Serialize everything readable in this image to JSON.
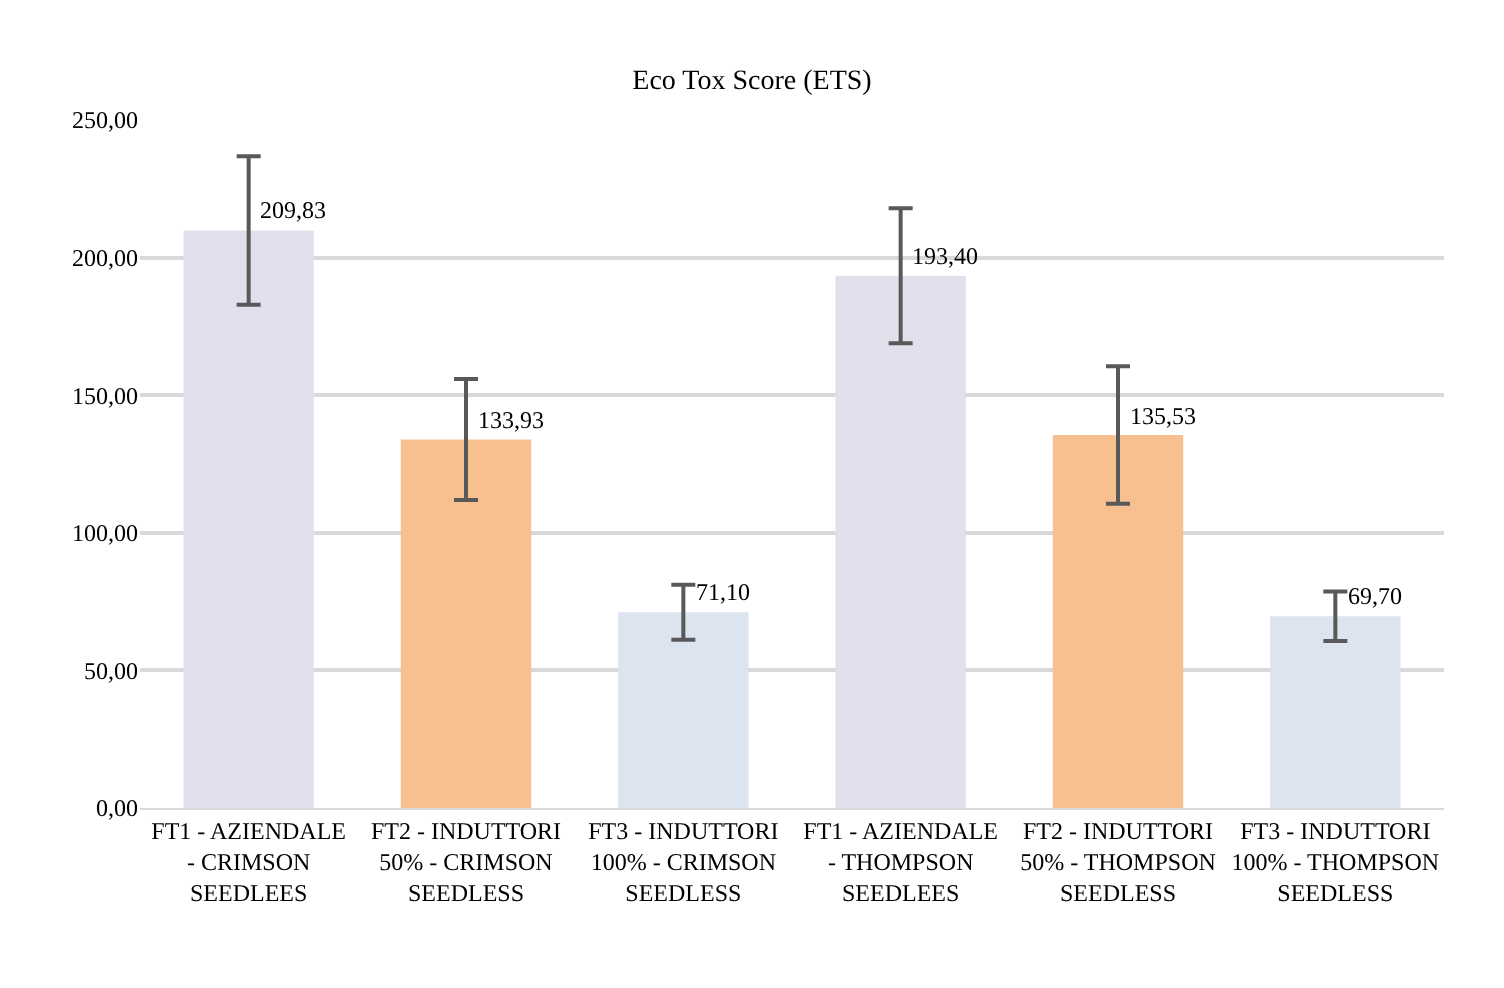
{
  "chart_data": {
    "type": "bar",
    "title": "Eco Tox Score (ETS)",
    "categories": [
      "FT1 - AZIENDALE - CRIMSON SEEDLEES",
      "FT2 - INDUTTORI 50% - CRIMSON SEEDLESS",
      "FT3 - INDUTTORI 100% - CRIMSON SEEDLESS",
      "FT1 - AZIENDALE - THOMPSON SEEDLEES",
      "FT2 - INDUTTORI 50% - THOMPSON SEEDLESS",
      "FT3 - INDUTTORI 100% - THOMPSON SEEDLESS"
    ],
    "values": [
      209.83,
      133.93,
      71.1,
      193.4,
      135.53,
      69.7
    ],
    "errors": [
      27,
      22,
      10,
      24.5,
      25,
      9
    ],
    "colors": [
      "#e3dfec",
      "#f8c090",
      "#dce4f0",
      "#e3dfec",
      "#f8c090",
      "#dce4f0"
    ],
    "ylim": [
      0,
      250
    ],
    "yticks": [
      {
        "value": 0,
        "label": "0,00"
      },
      {
        "value": 50,
        "label": "50,00"
      },
      {
        "value": 100,
        "label": "100,00"
      },
      {
        "value": 150,
        "label": "150,00"
      },
      {
        "value": 200,
        "label": "200,00"
      },
      {
        "value": 250,
        "label": "250,00"
      }
    ],
    "value_labels": [
      "209,83",
      "133,93",
      "71,10",
      "193,40",
      "135,53",
      "69,70"
    ],
    "grid": "y"
  }
}
